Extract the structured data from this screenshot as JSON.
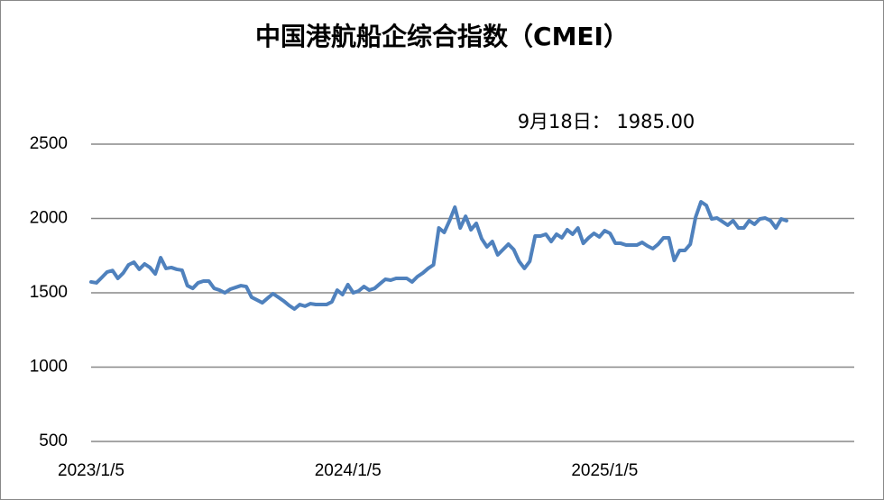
{
  "chart_data": {
    "type": "line",
    "title": "中国港航船企综合指数（CMEI）",
    "annotation": "9月18日： 1985.00",
    "color": "#4f81bd",
    "grid": true,
    "ylim": [
      500,
      2500
    ],
    "yticks": [
      500,
      1000,
      1500,
      2000,
      2500
    ],
    "categories": [
      "2023/1/5",
      null,
      null,
      null,
      null,
      null,
      null,
      null,
      null,
      null,
      null,
      null,
      null,
      null,
      null,
      null,
      null,
      null,
      null,
      null,
      null,
      null,
      null,
      null,
      null,
      null,
      null,
      null,
      null,
      null,
      null,
      null,
      null,
      null,
      null,
      null,
      null,
      null,
      null,
      null,
      null,
      null,
      null,
      null,
      null,
      null,
      null,
      null,
      "2024/1/5",
      null,
      null,
      null,
      null,
      null,
      null,
      null,
      null,
      null,
      null,
      null,
      null,
      null,
      null,
      null,
      null,
      null,
      null,
      null,
      null,
      null,
      null,
      null,
      null,
      null,
      null,
      null,
      null,
      null,
      null,
      null,
      null,
      null,
      null,
      null,
      null,
      null,
      null,
      null,
      null,
      null,
      null,
      null,
      null,
      null,
      null,
      null,
      "2025/1/5",
      null,
      null,
      null,
      null,
      null,
      null,
      null,
      null,
      null,
      null,
      null,
      null,
      null,
      null,
      null,
      null,
      null,
      null,
      null,
      null,
      null,
      null,
      null,
      null,
      null,
      null,
      null,
      null,
      null,
      null,
      null,
      null,
      null,
      null
    ],
    "values": [
      1573,
      1567,
      1603,
      1640,
      1650,
      1597,
      1633,
      1688,
      1706,
      1658,
      1694,
      1670,
      1627,
      1736,
      1664,
      1670,
      1658,
      1652,
      1548,
      1530,
      1567,
      1579,
      1579,
      1530,
      1518,
      1500,
      1524,
      1536,
      1548,
      1542,
      1470,
      1452,
      1433,
      1464,
      1494,
      1470,
      1445,
      1415,
      1391,
      1421,
      1410,
      1427,
      1421,
      1421,
      1421,
      1439,
      1518,
      1488,
      1555,
      1500,
      1512,
      1542,
      1518,
      1530,
      1561,
      1591,
      1585,
      1597,
      1597,
      1597,
      1573,
      1609,
      1633,
      1664,
      1688,
      1936,
      1906,
      1985,
      2076,
      1936,
      2015,
      1924,
      1967,
      1864,
      1809,
      1845,
      1755,
      1791,
      1827,
      1791,
      1712,
      1664,
      1712,
      1882,
      1882,
      1894,
      1845,
      1894,
      1870,
      1924,
      1894,
      1936,
      1833,
      1870,
      1900,
      1876,
      1918,
      1900,
      1833,
      1833,
      1821,
      1821,
      1821,
      1839,
      1815,
      1797,
      1827,
      1870,
      1870,
      1718,
      1785,
      1785,
      1827,
      2009,
      2112,
      2088,
      1997,
      2003,
      1979,
      1955,
      1985,
      1936,
      1936,
      1985,
      1961,
      1997,
      2003,
      1985,
      1936,
      1997,
      1985
    ]
  }
}
